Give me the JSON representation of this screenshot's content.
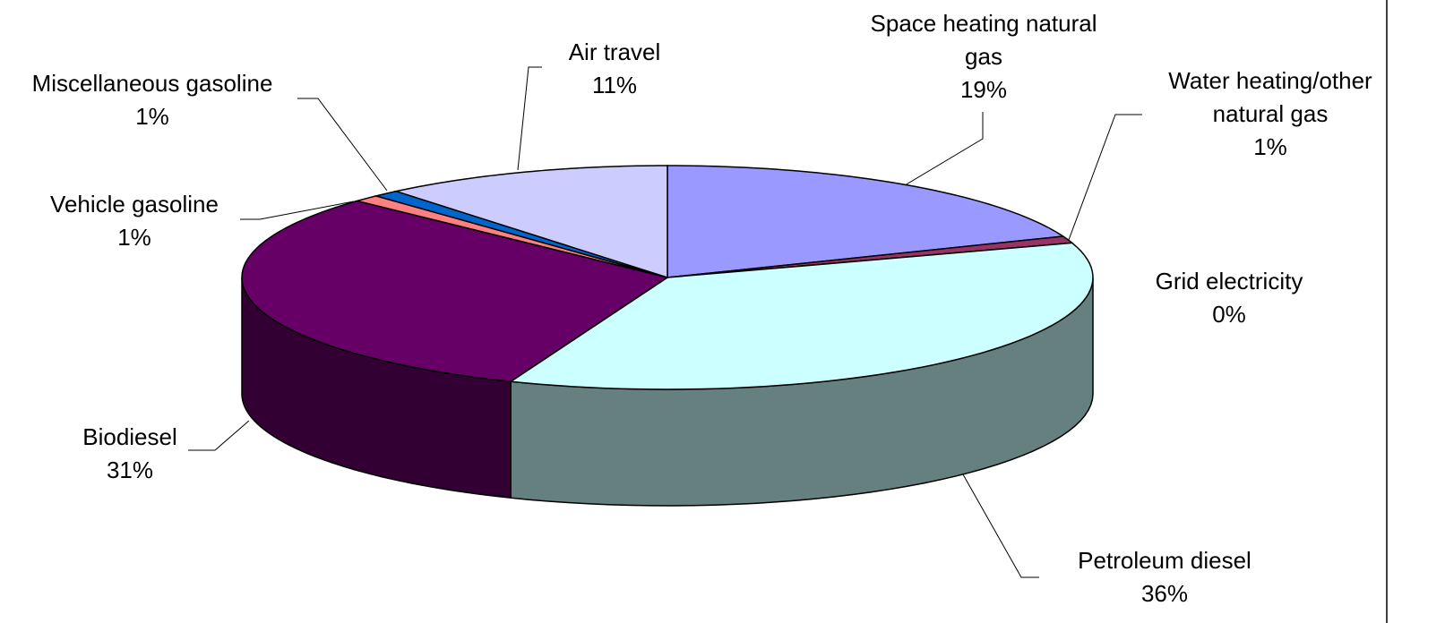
{
  "chart_data": {
    "type": "pie",
    "style": "3d",
    "categories": [
      "Space heating natural gas",
      "Water heating/other natural gas",
      "Grid electricity",
      "Petroleum diesel",
      "Biodiesel",
      "Vehicle gasoline",
      "Miscellaneous gasoline",
      "Air travel"
    ],
    "values": [
      19,
      1,
      0,
      36,
      31,
      1,
      1,
      11
    ],
    "value_labels": [
      "19%",
      "1%",
      "0%",
      "36%",
      "31%",
      "1%",
      "1%",
      "11%"
    ],
    "colors": [
      "#9999ff",
      "#993366",
      "#ffffcc",
      "#ccffff",
      "#660066",
      "#ff8080",
      "#0066cc",
      "#ccccff"
    ]
  }
}
